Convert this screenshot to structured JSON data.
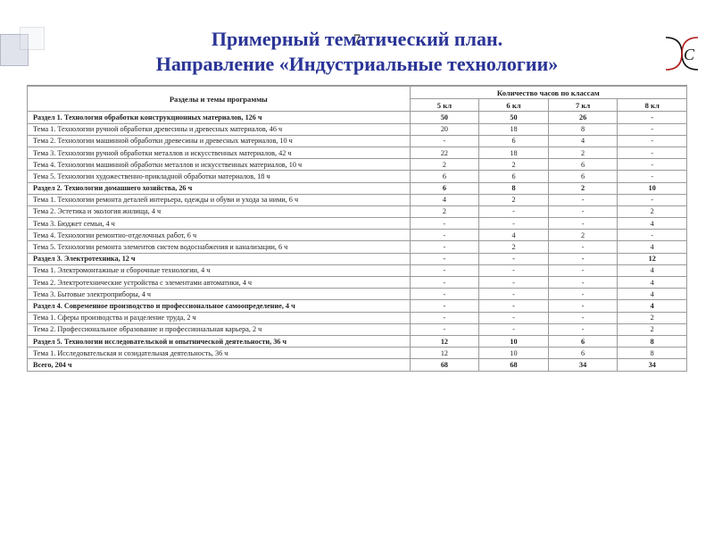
{
  "page_number": "7",
  "title_line1": "Примерный тематический план.",
  "title_line2": "Направление «Индустриальные технологии»",
  "header": {
    "col1": "Разделы и темы программы",
    "group": "Количество часов по классам",
    "k5": "5 кл",
    "k6": "6 кл",
    "k7": "7 кл",
    "k8": "8 кл"
  },
  "rows": [
    {
      "section": true,
      "name": "Раздел 1. Технология обработки конструкционных материалов, 126 ч",
      "v": [
        "50",
        "50",
        "26",
        "-"
      ]
    },
    {
      "section": false,
      "name": "Тема 1. Технологии ручной обработки древесины и древесных материалов, 46 ч",
      "v": [
        "20",
        "18",
        "8",
        "-"
      ]
    },
    {
      "section": false,
      "name": "Тема 2. Технологии машинной обработки древесины и древесных материалов, 10 ч",
      "v": [
        "-",
        "6",
        "4",
        "-"
      ]
    },
    {
      "section": false,
      "name": "Тема 3. Технологии ручной обработки металлов и искусственных материалов, 42 ч",
      "v": [
        "22",
        "18",
        "2",
        "-"
      ]
    },
    {
      "section": false,
      "name": "Тема 4. Технологии машинной обработки металлов и искусственных материалов, 10 ч",
      "v": [
        "2",
        "2",
        "6",
        "-"
      ]
    },
    {
      "section": false,
      "name": "Тема 5. Технологии художественно-прикладной обработки материалов, 18 ч",
      "v": [
        "6",
        "6",
        "6",
        "-"
      ]
    },
    {
      "section": true,
      "name": "Раздел 2. Технологии домашнего хозяйства, 26 ч",
      "v": [
        "6",
        "8",
        "2",
        "10"
      ]
    },
    {
      "section": false,
      "name": "Тема 1. Технологии ремонта деталей интерьера, одежды и обуви и ухода за ними, 6 ч",
      "v": [
        "4",
        "2",
        "-",
        "-"
      ]
    },
    {
      "section": false,
      "name": "Тема 2. Эстетика и экология жилища, 4 ч",
      "v": [
        "2",
        "-",
        "-",
        "2"
      ]
    },
    {
      "section": false,
      "name": "Тема 3. Бюджет семьи, 4 ч",
      "v": [
        "-",
        "-",
        "-",
        "4"
      ]
    },
    {
      "section": false,
      "name": "Тема 4. Технологии ремонтно-отделочных работ, 6 ч",
      "v": [
        "-",
        "4",
        "2",
        "-"
      ]
    },
    {
      "section": false,
      "name": "Тема 5. Технологии ремонта элементов систем водоснабжения и канализации, 6 ч",
      "v": [
        "-",
        "2",
        "-",
        "4"
      ]
    },
    {
      "section": true,
      "name": "Раздел 3. Электротехника, 12 ч",
      "v": [
        "-",
        "-",
        "-",
        "12"
      ]
    },
    {
      "section": false,
      "name": "Тема 1. Электромонтажные и сборочные технологии, 4 ч",
      "v": [
        "-",
        "-",
        "-",
        "4"
      ]
    },
    {
      "section": false,
      "name": "Тема 2. Электротехнические устройства с элементами автоматики, 4 ч",
      "v": [
        "-",
        "-",
        "-",
        "4"
      ]
    },
    {
      "section": false,
      "name": "Тема 3. Бытовые электроприборы, 4 ч",
      "v": [
        "-",
        "-",
        "-",
        "4"
      ]
    },
    {
      "section": true,
      "name": "Раздел 4. Современное производство и профессиональное самоопределение, 4 ч",
      "v": [
        "-",
        "-",
        "-",
        "4"
      ]
    },
    {
      "section": false,
      "name": "Тема 1. Сферы производства и разделение труда, 2 ч",
      "v": [
        "-",
        "-",
        "-",
        "2"
      ]
    },
    {
      "section": false,
      "name": "Тема 2. Профессиональное образование и профессиональная карьера, 2 ч",
      "v": [
        "-",
        "-",
        "-",
        "2"
      ]
    },
    {
      "section": true,
      "name": "Раздел 5. Технологии исследовательской и опытнической деятельности, 36 ч",
      "v": [
        "12",
        "10",
        "6",
        "8"
      ]
    },
    {
      "section": false,
      "name": "Тема 1. Исследовательская и созидательная деятельность, 36 ч",
      "v": [
        "12",
        "10",
        "6",
        "8"
      ]
    },
    {
      "section": true,
      "name": "Всего, 204 ч",
      "v": [
        "68",
        "68",
        "34",
        "34"
      ]
    }
  ]
}
